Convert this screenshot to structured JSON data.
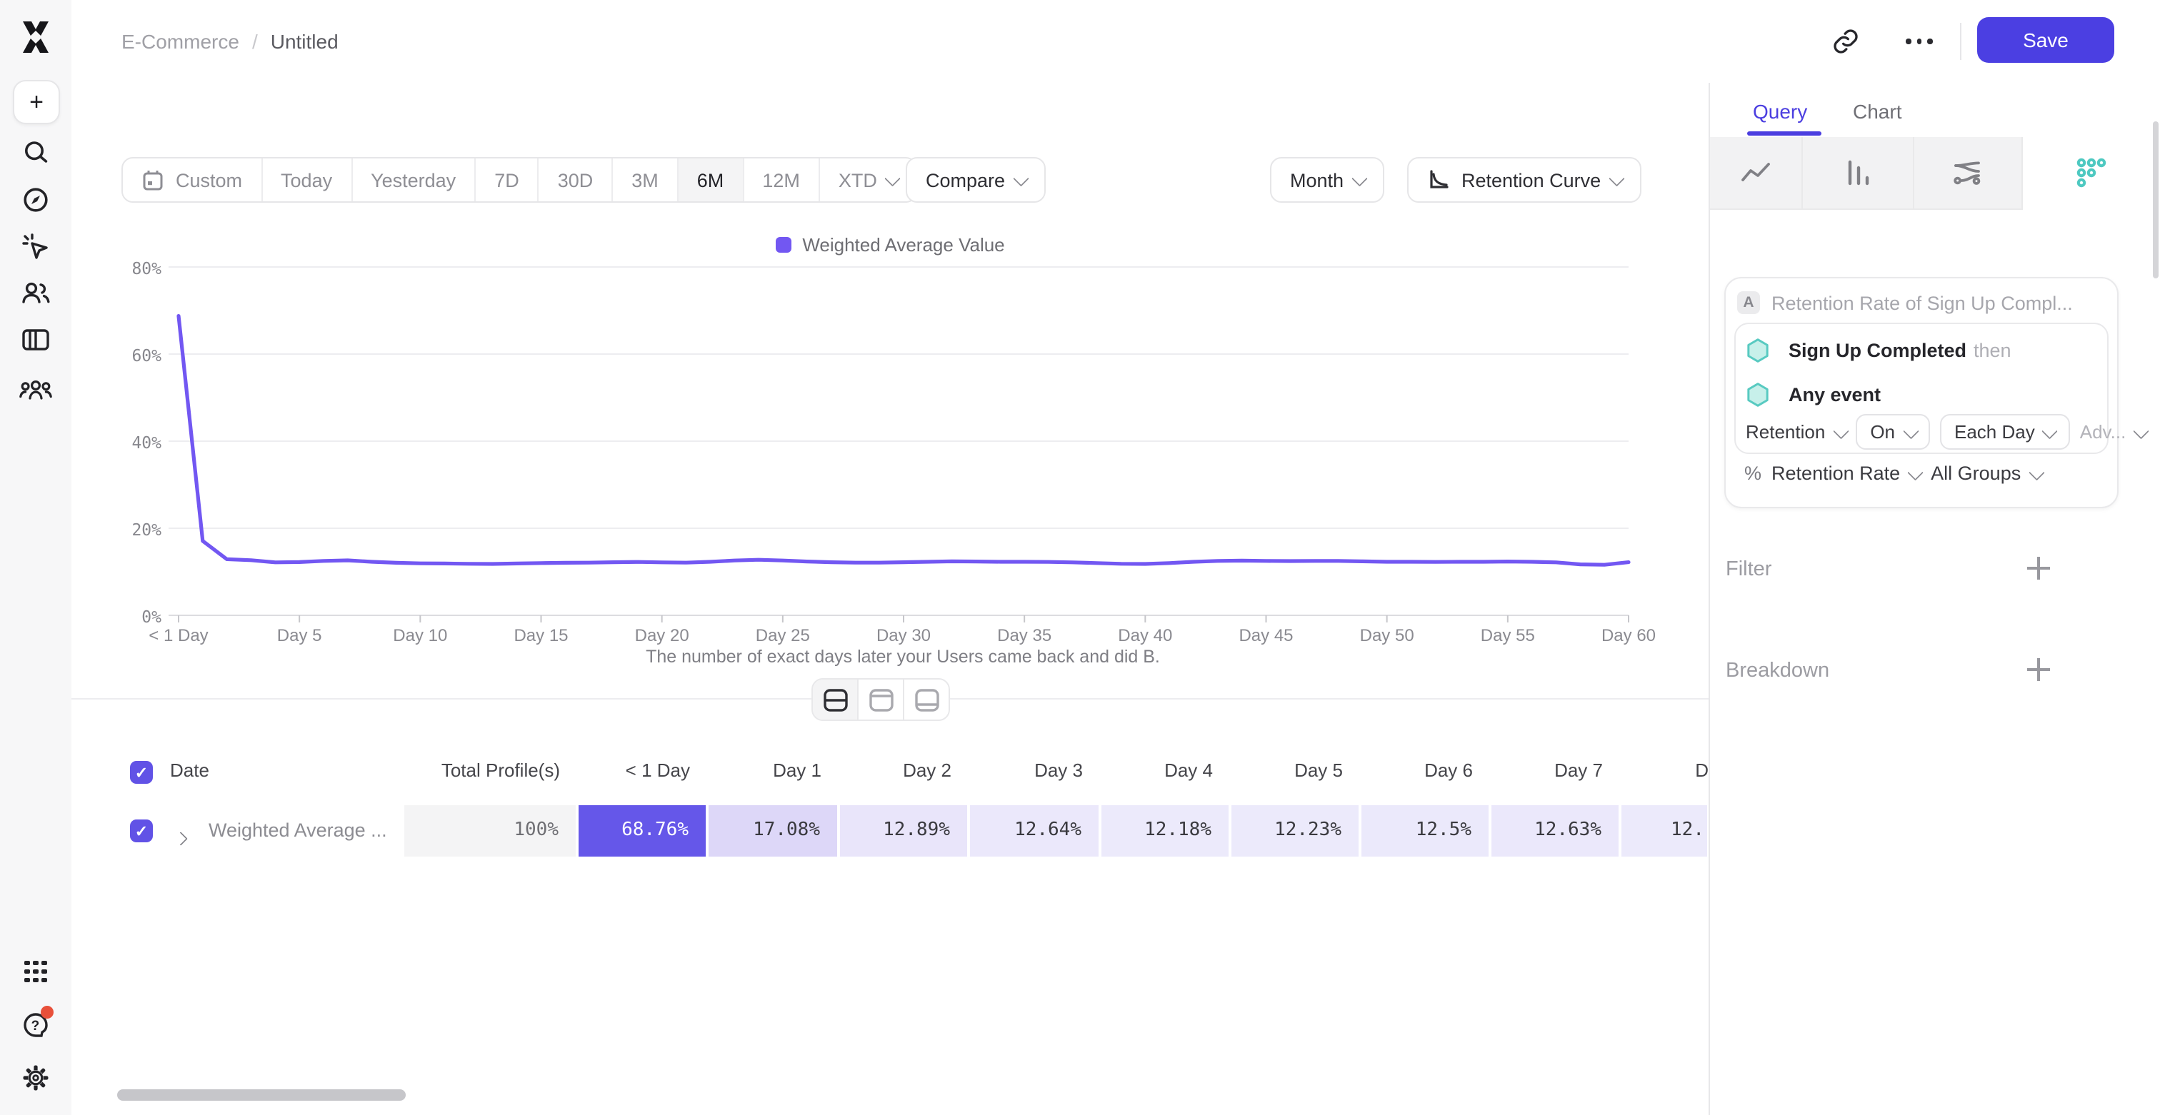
{
  "topbar": {
    "breadcrumb_root": "E-Commerce",
    "breadcrumb_sep": "/",
    "breadcrumb_current": "Untitled",
    "save_label": "Save"
  },
  "sidebar": {
    "icons": [
      "mixpanel-logo",
      "create-plus",
      "search",
      "explore-compass",
      "ai-cursor",
      "users",
      "boards",
      "cohorts",
      "apps-grid",
      "help",
      "settings-gear"
    ]
  },
  "toolbar": {
    "date_ranges": [
      "Custom",
      "Today",
      "Yesterday",
      "7D",
      "30D",
      "3M",
      "6M",
      "12M",
      "XTD"
    ],
    "selected_range": "6M",
    "compare_label": "Compare",
    "granularity_label": "Month",
    "chart_type_label": "Retention Curve"
  },
  "chart_data": {
    "type": "line",
    "legend_label": "Weighted Average Value",
    "series": [
      {
        "name": "Weighted Average Value",
        "color": "#7257f2",
        "x_days": [
          0,
          1,
          2,
          3,
          4,
          5,
          6,
          7,
          8,
          9,
          10,
          11,
          12,
          13,
          14,
          15,
          16,
          17,
          18,
          19,
          20,
          21,
          22,
          23,
          24,
          25,
          26,
          27,
          28,
          29,
          30,
          31,
          32,
          33,
          34,
          35,
          36,
          37,
          38,
          39,
          40,
          41,
          42,
          43,
          44,
          45,
          46,
          47,
          48,
          49,
          50,
          51,
          52,
          53,
          54,
          55,
          56,
          57,
          58,
          59,
          60
        ],
        "values": [
          68.76,
          17.08,
          12.89,
          12.64,
          12.18,
          12.23,
          12.5,
          12.63,
          12.3,
          12.05,
          11.95,
          11.9,
          11.85,
          11.8,
          11.9,
          12.0,
          12.05,
          12.1,
          12.2,
          12.25,
          12.15,
          12.1,
          12.3,
          12.6,
          12.75,
          12.6,
          12.35,
          12.2,
          12.1,
          12.1,
          12.2,
          12.3,
          12.4,
          12.35,
          12.3,
          12.3,
          12.25,
          12.15,
          12.0,
          11.85,
          11.8,
          12.0,
          12.3,
          12.5,
          12.55,
          12.5,
          12.45,
          12.5,
          12.5,
          12.4,
          12.3,
          12.3,
          12.25,
          12.3,
          12.3,
          12.35,
          12.3,
          12.15,
          11.7,
          11.6,
          12.2
        ]
      }
    ],
    "ylim": [
      0,
      80
    ],
    "y_ticks": [
      {
        "value": 80,
        "label": "80%"
      },
      {
        "value": 60,
        "label": "60%"
      },
      {
        "value": 40,
        "label": "40%"
      },
      {
        "value": 20,
        "label": "20%"
      },
      {
        "value": 0,
        "label": "0%"
      }
    ],
    "x_ticks": [
      {
        "day": 0,
        "label": "< 1 Day"
      },
      {
        "day": 5,
        "label": "Day 5"
      },
      {
        "day": 10,
        "label": "Day 10"
      },
      {
        "day": 15,
        "label": "Day 15"
      },
      {
        "day": 20,
        "label": "Day 20"
      },
      {
        "day": 25,
        "label": "Day 25"
      },
      {
        "day": 30,
        "label": "Day 30"
      },
      {
        "day": 35,
        "label": "Day 35"
      },
      {
        "day": 40,
        "label": "Day 40"
      },
      {
        "day": 45,
        "label": "Day 45"
      },
      {
        "day": 50,
        "label": "Day 50"
      },
      {
        "day": 55,
        "label": "Day 55"
      },
      {
        "day": 60,
        "label": "Day 60"
      }
    ],
    "caption": "The number of exact days later your Users came back and did B.",
    "grid": true,
    "legend_position": "top-center"
  },
  "table": {
    "name_header": "Date",
    "value_headers": [
      "Total Profile(s)",
      "< 1 Day",
      "Day 1",
      "Day 2",
      "Day 3",
      "Day 4",
      "Day 5",
      "Day 6",
      "Day 7",
      "D"
    ],
    "row": {
      "label": "Weighted Average ...",
      "cells": [
        {
          "value": "100%",
          "bg": "#f4f4f5",
          "fg": "#6f6f74"
        },
        {
          "value": "68.76%",
          "bg": "#6557e9",
          "fg": "#ffffff"
        },
        {
          "value": "17.08%",
          "bg": "#ddd7f8",
          "fg": "#3a3a3f"
        },
        {
          "value": "12.89%",
          "bg": "#e9e5fa",
          "fg": "#3a3a3f"
        },
        {
          "value": "12.64%",
          "bg": "#ebe8fb",
          "fg": "#3a3a3f"
        },
        {
          "value": "12.18%",
          "bg": "#eceafb",
          "fg": "#3a3a3f"
        },
        {
          "value": "12.23%",
          "bg": "#eceafb",
          "fg": "#3a3a3f"
        },
        {
          "value": "12.5%",
          "bg": "#ebe9fb",
          "fg": "#3a3a3f"
        },
        {
          "value": "12.63%",
          "bg": "#ebe8fb",
          "fg": "#3a3a3f"
        },
        {
          "value": "12.",
          "bg": "#eceafb",
          "fg": "#3a3a3f"
        }
      ]
    }
  },
  "panel": {
    "tabs": {
      "query": "Query",
      "chart": "Chart"
    },
    "active_tab": "Query",
    "view_icons": [
      "insights-line-icon",
      "funnels-bars-icon",
      "flows-icon",
      "retention-dots-icon"
    ],
    "accent": "#4b3ee0",
    "retention_icon_color": "#4ec9c1",
    "query": {
      "badge": "A",
      "title": "Retention Rate of Sign Up Compl...",
      "event_a": "Sign Up Completed",
      "event_a_suffix": "then",
      "event_b": "Any event",
      "retention_dd": "Retention",
      "on_dd": "On",
      "each_day_dd": "Each Day",
      "advanced_dd": "Adv...",
      "metric_prefix": "%",
      "metric_dd": "Retention Rate",
      "groups_dd": "All Groups"
    },
    "filter_label": "Filter",
    "breakdown_label": "Breakdown"
  }
}
